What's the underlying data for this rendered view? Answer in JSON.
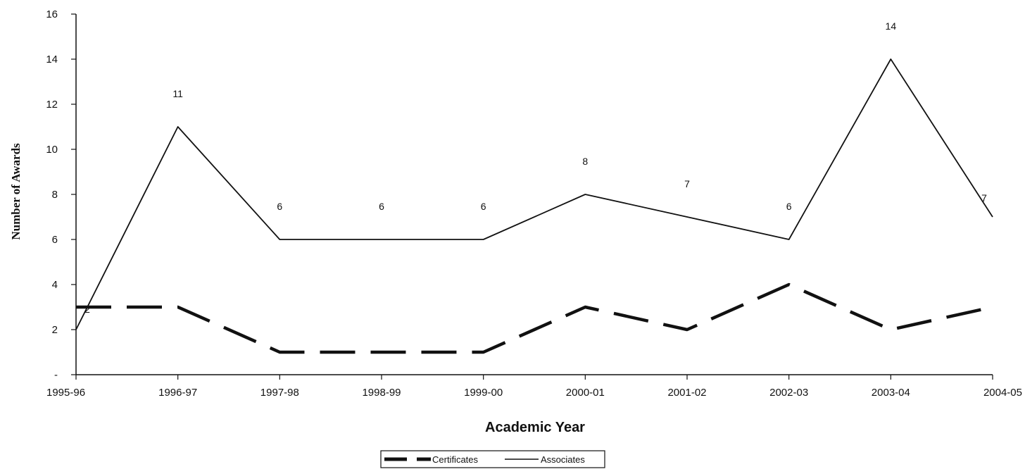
{
  "chart_data": {
    "type": "line",
    "xlabel": "Academic Year",
    "ylabel": "Number of Awards",
    "categories": [
      "1995-96",
      "1996-97",
      "1997-98",
      "1998-99",
      "1999-00",
      "2000-01",
      "2001-02",
      "2002-03",
      "2003-04",
      "2004-05"
    ],
    "ylim": [
      0,
      16
    ],
    "yticks": [
      0,
      2,
      4,
      6,
      8,
      10,
      12,
      14,
      16
    ],
    "ytick_labels": [
      "-",
      "2",
      "4",
      "6",
      "8",
      "10",
      "12",
      "14",
      "16"
    ],
    "grid": false,
    "legend_position": "bottom",
    "series": [
      {
        "name": "Certificates",
        "style": "dashed",
        "color": "#111111",
        "values": [
          3,
          3,
          1,
          1,
          1,
          3,
          2,
          4,
          2,
          3
        ],
        "show_labels": false
      },
      {
        "name": "Associates",
        "style": "solid",
        "color": "#111111",
        "values": [
          2,
          11,
          6,
          6,
          6,
          8,
          7,
          6,
          14,
          7
        ],
        "show_labels": true
      }
    ]
  }
}
